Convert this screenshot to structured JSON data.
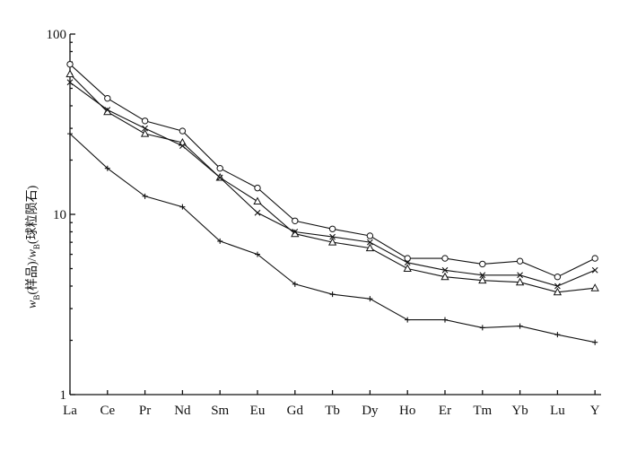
{
  "chart_data": {
    "type": "line",
    "ylabel": "w_B(样品)/w_B(球粒陨石)",
    "ylabel_main_1": "w",
    "ylabel_sub_1": "B",
    "ylabel_paren_1": "(样品)/",
    "ylabel_main_2": "w",
    "ylabel_sub_2": "B",
    "ylabel_paren_2": "(球粒陨石)",
    "yscale": "log",
    "ylim": [
      1,
      100
    ],
    "yticks": [
      1,
      10,
      100
    ],
    "ytick_labels": [
      "1",
      "10",
      "100"
    ],
    "categories": [
      "La",
      "Ce",
      "Pr",
      "Nd",
      "Sm",
      "Eu",
      "Gd",
      "Tb",
      "Dy",
      "Ho",
      "Er",
      "Tm",
      "Yb",
      "Lu",
      "Y"
    ],
    "grid": false,
    "series": [
      {
        "marker": "circle",
        "values": [
          68,
          44,
          33,
          29,
          18,
          14,
          9.2,
          8.3,
          7.6,
          5.7,
          5.7,
          5.3,
          5.5,
          4.5,
          5.7
        ]
      },
      {
        "marker": "triangle",
        "values": [
          60,
          37,
          28,
          25,
          16,
          11.8,
          7.8,
          7.0,
          6.5,
          5.0,
          4.5,
          4.3,
          4.2,
          3.7,
          3.9
        ]
      },
      {
        "marker": "x",
        "values": [
          54,
          38,
          30,
          24,
          16,
          10.2,
          8.0,
          7.5,
          7.0,
          5.4,
          4.9,
          4.6,
          4.6,
          4.0,
          4.9
        ]
      },
      {
        "marker": "plus",
        "values": [
          28,
          18,
          12.6,
          11,
          7.1,
          6.0,
          4.1,
          3.6,
          3.4,
          2.6,
          2.6,
          2.35,
          2.4,
          2.15,
          1.95
        ]
      }
    ]
  }
}
